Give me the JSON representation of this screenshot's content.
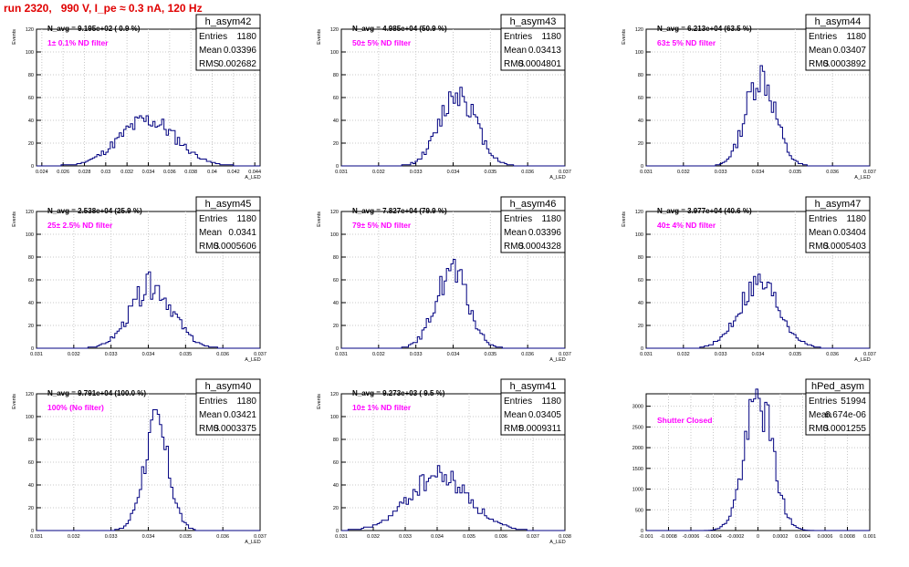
{
  "page": {
    "title": "run 2320,   990 V, I_pe ≈ 0.3 nA, 120 Hz"
  },
  "colors": {
    "histogram": "#000080",
    "annotation": "#ff00ff",
    "title": "#e00000",
    "grid": "#c8c8c8"
  },
  "chart_data": [
    {
      "type": "histogram",
      "name": "h_asym42",
      "xlabel": "A_LED",
      "ylabel": "Events",
      "xlim": [
        0.0235,
        0.0445
      ],
      "ylim": [
        0,
        120
      ],
      "bins": 100,
      "xticks": [
        0.024,
        0.026,
        0.028,
        0.03,
        0.032,
        0.034,
        0.036,
        0.038,
        0.04,
        0.042,
        0.044
      ],
      "xtick_labels": [
        "0.024",
        "0.026",
        "0.028",
        "0.03",
        "0.032",
        "0.034",
        "0.036",
        "0.038",
        "0.04",
        "0.042",
        "0.044"
      ],
      "yticks": [
        0,
        20,
        40,
        60,
        80,
        100,
        120
      ],
      "stats": {
        "entries": "1180",
        "mean": "0.03396",
        "rms": "0.002682"
      },
      "stats_labels": {
        "entries": "Entries",
        "mean": "Mean",
        "rms": "RMS"
      },
      "navg": "N_avg = 9.195e+02 ( 0.9 %)",
      "filter": "1± 0.1% ND filter",
      "profile": {
        "mean": 0.03396,
        "rms": 0.002682,
        "peak": 40,
        "seed": 11
      }
    },
    {
      "type": "histogram",
      "name": "h_asym43",
      "xlabel": "A_LED",
      "ylabel": "Events",
      "xlim": [
        0.031,
        0.037
      ],
      "ylim": [
        0,
        120
      ],
      "bins": 100,
      "xticks": [
        0.031,
        0.032,
        0.033,
        0.034,
        0.035,
        0.036,
        0.037
      ],
      "xtick_labels": [
        "0.031",
        "0.032",
        "0.033",
        "0.034",
        "0.035",
        "0.036",
        "0.037"
      ],
      "yticks": [
        0,
        20,
        40,
        60,
        80,
        100,
        120
      ],
      "stats": {
        "entries": "1180",
        "mean": "0.03413",
        "rms": "0.0004801"
      },
      "stats_labels": {
        "entries": "Entries",
        "mean": "Mean",
        "rms": "RMS"
      },
      "navg": "N_avg = 4.985e+04 (50.9 %)",
      "filter": "50± 5% ND filter",
      "profile": {
        "mean": 0.03413,
        "rms": 0.0004801,
        "peak": 65,
        "seed": 12
      }
    },
    {
      "type": "histogram",
      "name": "h_asym44",
      "xlabel": "A_LED",
      "ylabel": "Events",
      "xlim": [
        0.031,
        0.037
      ],
      "ylim": [
        0,
        120
      ],
      "bins": 100,
      "xticks": [
        0.031,
        0.032,
        0.033,
        0.034,
        0.035,
        0.036,
        0.037
      ],
      "xtick_labels": [
        "0.031",
        "0.032",
        "0.033",
        "0.034",
        "0.035",
        "0.036",
        "0.037"
      ],
      "yticks": [
        0,
        20,
        40,
        60,
        80,
        100,
        120
      ],
      "stats": {
        "entries": "1180",
        "mean": "0.03407",
        "rms": "0.0003892"
      },
      "stats_labels": {
        "entries": "Entries",
        "mean": "Mean",
        "rms": "RMS"
      },
      "navg": "N_avg = 6.213e+04 (63.5 %)",
      "filter": "63± 5% ND filter",
      "profile": {
        "mean": 0.03407,
        "rms": 0.0003892,
        "peak": 80,
        "seed": 13
      }
    },
    {
      "type": "histogram",
      "name": "h_asym45",
      "xlabel": "A_LED",
      "ylabel": "Events",
      "xlim": [
        0.031,
        0.037
      ],
      "ylim": [
        0,
        120
      ],
      "bins": 100,
      "xticks": [
        0.031,
        0.032,
        0.033,
        0.034,
        0.035,
        0.036,
        0.037
      ],
      "xtick_labels": [
        "0.031",
        "0.032",
        "0.033",
        "0.034",
        "0.035",
        "0.036",
        "0.037"
      ],
      "yticks": [
        0,
        20,
        40,
        60,
        80,
        100,
        120
      ],
      "stats": {
        "entries": "1180",
        "mean": "0.0341",
        "rms": "0.0005606"
      },
      "stats_labels": {
        "entries": "Entries",
        "mean": "Mean",
        "rms": "RMS"
      },
      "navg": "N_avg = 2.538e+04 (25.9 %)",
      "filter": "25± 2.5% ND filter",
      "profile": {
        "mean": 0.0341,
        "rms": 0.0005606,
        "peak": 55,
        "seed": 14
      }
    },
    {
      "type": "histogram",
      "name": "h_asym46",
      "xlabel": "A_LED",
      "ylabel": "Events",
      "xlim": [
        0.031,
        0.037
      ],
      "ylim": [
        0,
        120
      ],
      "bins": 100,
      "xticks": [
        0.031,
        0.032,
        0.033,
        0.034,
        0.035,
        0.036,
        0.037
      ],
      "xtick_labels": [
        "0.031",
        "0.032",
        "0.033",
        "0.034",
        "0.035",
        "0.036",
        "0.037"
      ],
      "yticks": [
        0,
        20,
        40,
        60,
        80,
        100,
        120
      ],
      "stats": {
        "entries": "1180",
        "mean": "0.03396",
        "rms": "0.0004328"
      },
      "stats_labels": {
        "entries": "Entries",
        "mean": "Mean",
        "rms": "RMS"
      },
      "navg": "N_avg = 7.827e+04 (79.9 %)",
      "filter": "79± 5% ND filter",
      "profile": {
        "mean": 0.03396,
        "rms": 0.0004328,
        "peak": 67,
        "seed": 15
      }
    },
    {
      "type": "histogram",
      "name": "h_asym47",
      "xlabel": "A_LED",
      "ylabel": "Events",
      "xlim": [
        0.031,
        0.037
      ],
      "ylim": [
        0,
        120
      ],
      "bins": 100,
      "xticks": [
        0.031,
        0.032,
        0.033,
        0.034,
        0.035,
        0.036,
        0.037
      ],
      "xtick_labels": [
        "0.031",
        "0.032",
        "0.033",
        "0.034",
        "0.035",
        "0.036",
        "0.037"
      ],
      "yticks": [
        0,
        20,
        40,
        60,
        80,
        100,
        120
      ],
      "stats": {
        "entries": "1180",
        "mean": "0.03404",
        "rms": "0.0005403"
      },
      "stats_labels": {
        "entries": "Entries",
        "mean": "Mean",
        "rms": "RMS"
      },
      "navg": "N_avg = 3.977e+04 (40.6 %)",
      "filter": "40± 4% ND filter",
      "profile": {
        "mean": 0.03404,
        "rms": 0.0005403,
        "peak": 57,
        "seed": 16
      }
    },
    {
      "type": "histogram",
      "name": "h_asym40",
      "xlabel": "A_LED",
      "ylabel": "Events",
      "xlim": [
        0.031,
        0.037
      ],
      "ylim": [
        0,
        120
      ],
      "bins": 100,
      "xticks": [
        0.031,
        0.032,
        0.033,
        0.034,
        0.035,
        0.036,
        0.037
      ],
      "xtick_labels": [
        "0.031",
        "0.032",
        "0.033",
        "0.034",
        "0.035",
        "0.036",
        "0.037"
      ],
      "yticks": [
        0,
        20,
        40,
        60,
        80,
        100,
        120
      ],
      "stats": {
        "entries": "1180",
        "mean": "0.03421",
        "rms": "0.0003375"
      },
      "stats_labels": {
        "entries": "Entries",
        "mean": "Mean",
        "rms": "RMS"
      },
      "navg": "N_avg = 9.791e+04 (100.0 %)",
      "filter": "100% (No filter)",
      "profile": {
        "mean": 0.03421,
        "rms": 0.0003375,
        "peak": 91,
        "seed": 17
      }
    },
    {
      "type": "histogram",
      "name": "h_asym41",
      "xlabel": "A_LED",
      "ylabel": "Events",
      "xlim": [
        0.031,
        0.038
      ],
      "ylim": [
        0,
        120
      ],
      "bins": 100,
      "xticks": [
        0.031,
        0.032,
        0.033,
        0.034,
        0.035,
        0.036,
        0.037,
        0.038
      ],
      "xtick_labels": [
        "0.031",
        "0.032",
        "0.033",
        "0.034",
        "0.035",
        "0.036",
        "0.037",
        "0.038"
      ],
      "yticks": [
        0,
        20,
        40,
        60,
        80,
        100,
        120
      ],
      "stats": {
        "entries": "1180",
        "mean": "0.03405",
        "rms": "0.0009311"
      },
      "stats_labels": {
        "entries": "Entries",
        "mean": "Mean",
        "rms": "RMS"
      },
      "navg": "N_avg = 9.273e+03 ( 9.5 %)",
      "filter": "10± 1% ND filter",
      "profile": {
        "mean": 0.03405,
        "rms": 0.0009311,
        "peak": 48,
        "seed": 18
      }
    },
    {
      "type": "histogram",
      "name": "hPed_asym",
      "xlabel": "",
      "ylabel": "",
      "xlim": [
        -0.001,
        0.001
      ],
      "ylim": [
        0,
        3300
      ],
      "bins": 100,
      "xticks": [
        -0.001,
        -0.0008,
        -0.0006,
        -0.0004,
        -0.0002,
        0,
        0.0002,
        0.0004,
        0.0006,
        0.0008,
        0.001
      ],
      "xtick_labels": [
        "-0.001",
        "-0.0008",
        "-0.0006",
        "-0.0004",
        "-0.0002",
        "0",
        "0.0002",
        "0.0004",
        "0.0006",
        "0.0008",
        "0.001"
      ],
      "yticks": [
        0,
        500,
        1000,
        1500,
        2000,
        2500,
        3000
      ],
      "stats": {
        "entries": "51994",
        "mean": "6.674e-06",
        "rms": "0.0001255"
      },
      "stats_labels": {
        "entries": "Entries",
        "mean": "Mean",
        "rms": "RMS"
      },
      "navg": "",
      "filter": "Shutter Closed",
      "profile": {
        "mean": 6.674e-06,
        "rms": 0.0001255,
        "peak": 3150,
        "seed": 19
      }
    }
  ]
}
